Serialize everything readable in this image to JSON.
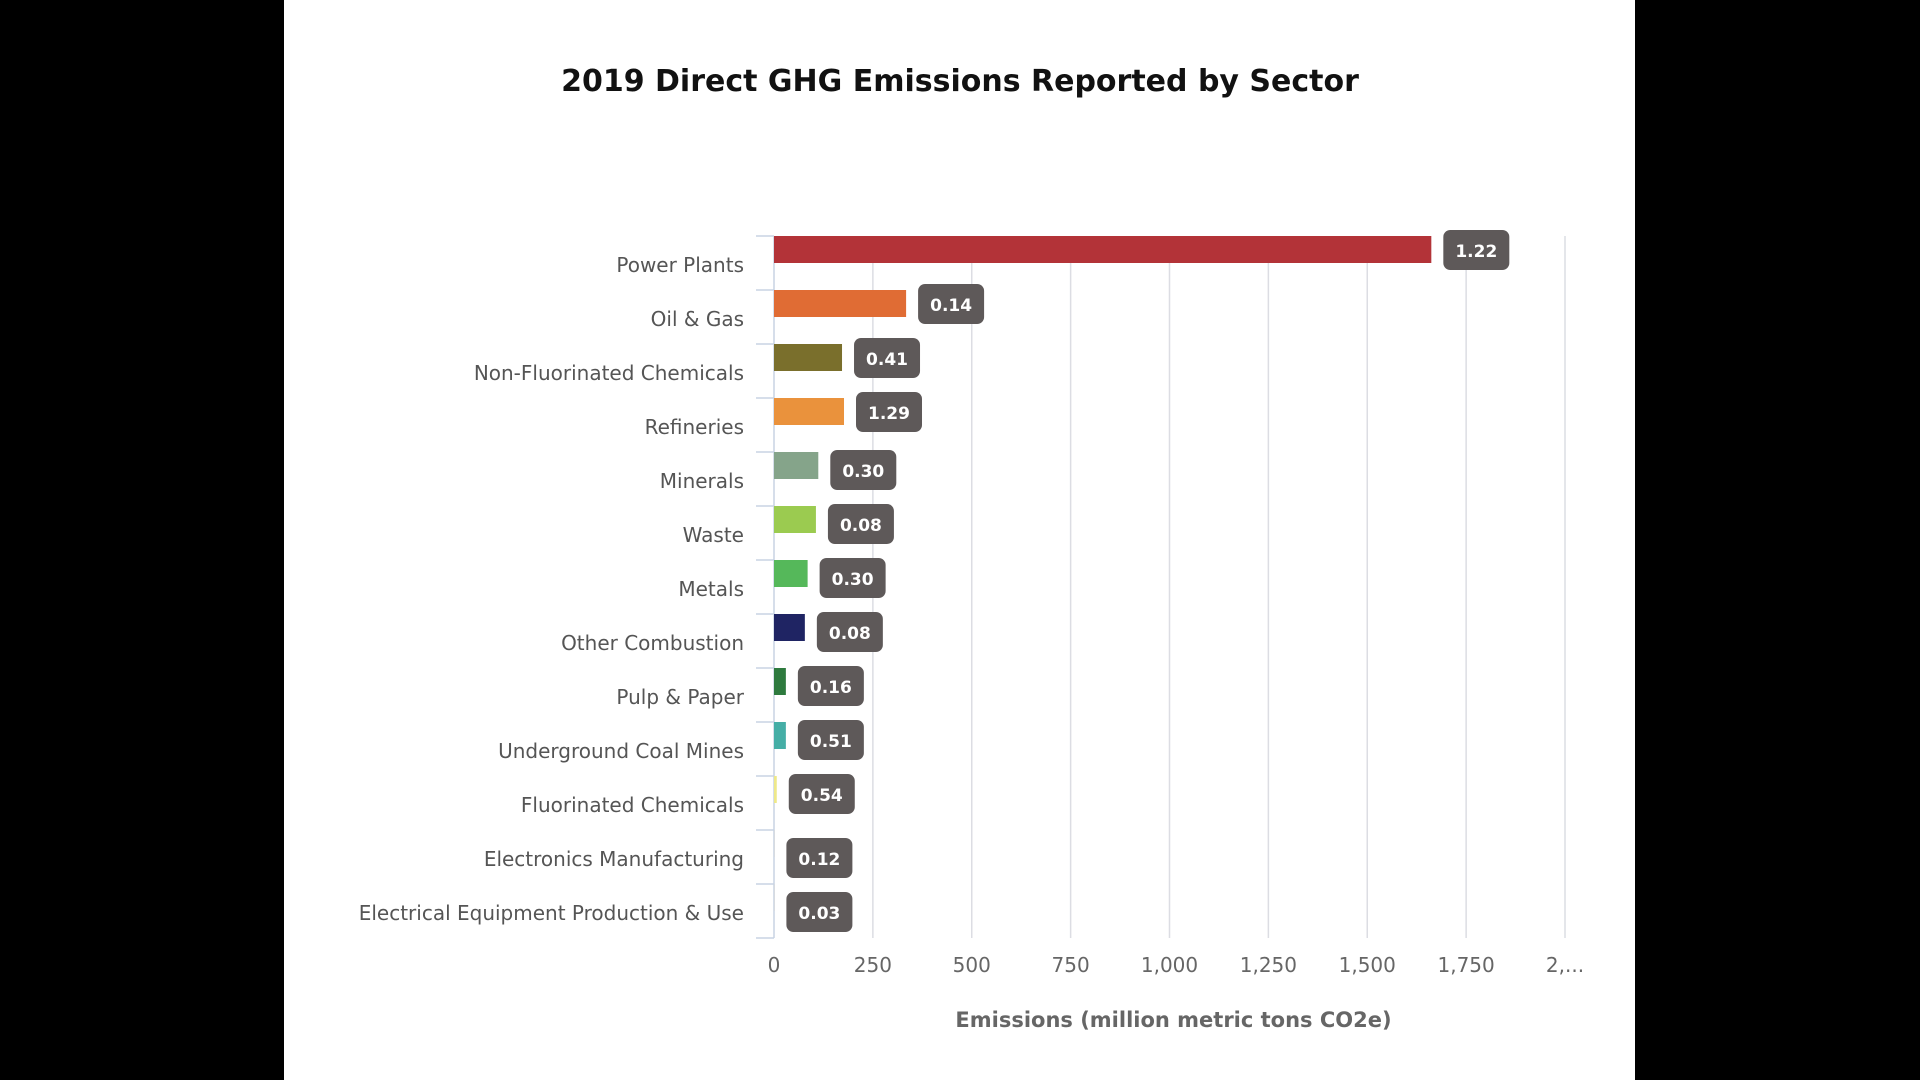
{
  "chart_data": {
    "type": "bar",
    "orientation": "horizontal",
    "title": "2019 Direct GHG Emissions Reported by Sector",
    "xlabel": "Emissions (million metric tons CO2e)",
    "ylabel": "",
    "xlim": [
      0,
      2000
    ],
    "xticks": [
      "0",
      "250",
      "500",
      "750",
      "1,000",
      "1,250",
      "1,500",
      "1,750",
      "2,..."
    ],
    "grid": true,
    "categories": [
      "Power Plants",
      "Oil & Gas",
      "Non-Fluorinated Chemicals",
      "Refineries",
      "Minerals",
      "Waste",
      "Metals",
      "Other Combustion",
      "Pulp & Paper",
      "Underground Coal Mines",
      "Fluorinated Chemicals",
      "Electronics Manufacturing",
      "Electrical Equipment Production & Use"
    ],
    "values": [
      1662,
      334,
      172,
      177,
      112,
      106,
      85,
      78,
      30,
      30,
      7,
      1,
      1
    ],
    "data_labels": [
      "1.22",
      "0.14",
      "0.41",
      "1.29",
      "0.30",
      "0.08",
      "0.30",
      "0.08",
      "0.16",
      "0.51",
      "0.54",
      "0.12",
      "0.03"
    ],
    "colors": [
      "#b33338",
      "#e06c34",
      "#7a6f2c",
      "#ea923c",
      "#85a48a",
      "#9bcb50",
      "#55b85a",
      "#1f2463",
      "#2e7a3e",
      "#45aea6",
      "#eee88a",
      "#cccccc",
      "#cccccc"
    ],
    "label_box_color": "#5e5959"
  }
}
